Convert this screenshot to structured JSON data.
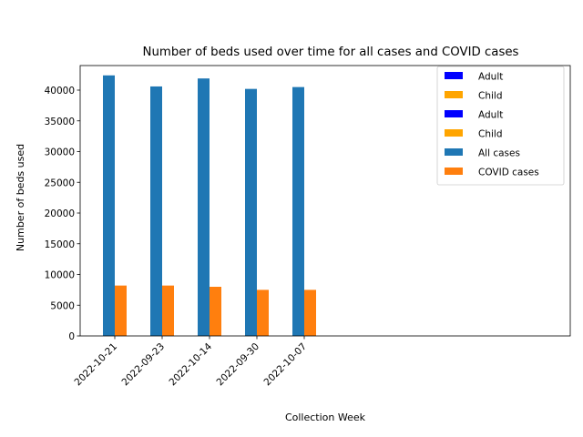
{
  "chart_data": {
    "type": "bar",
    "title": "Number of beds used over time for all cases and COVID cases",
    "xlabel": "Collection Week",
    "ylabel": "Number of beds used",
    "categories": [
      "2022-10-21",
      "2022-09-23",
      "2022-10-14",
      "2022-09-30",
      "2022-10-07"
    ],
    "series": [
      {
        "name": "All cases",
        "color": "#1f77b4",
        "values": [
          42400,
          40600,
          41900,
          40200,
          40500
        ]
      },
      {
        "name": "COVID cases",
        "color": "#ff7f0e",
        "values": [
          8200,
          8200,
          8000,
          7500,
          7500
        ]
      }
    ],
    "ylim": [
      0,
      44000
    ],
    "yticks": [
      0,
      5000,
      10000,
      15000,
      20000,
      25000,
      30000,
      35000,
      40000
    ],
    "grid": false,
    "legend": {
      "placement": "top-right",
      "entries": [
        {
          "label": "Adult",
          "color": "#0000ff"
        },
        {
          "label": "Child",
          "color": "#ffa500"
        },
        {
          "label": "Adult",
          "color": "#0000ff"
        },
        {
          "label": "Child",
          "color": "#ffa500"
        },
        {
          "label": "All cases",
          "color": "#1f77b4"
        },
        {
          "label": "COVID cases",
          "color": "#ff7f0e"
        }
      ]
    }
  }
}
